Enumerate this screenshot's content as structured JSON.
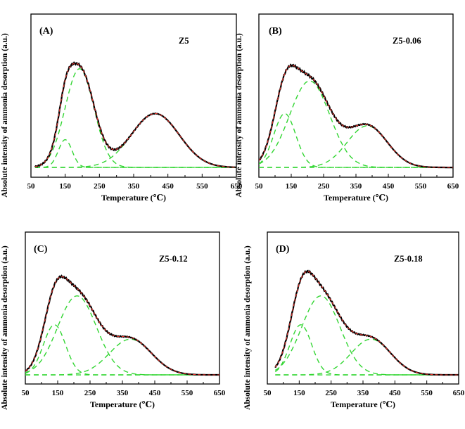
{
  "colors": {
    "experimental": "#000000",
    "fitted_sum": "#e8312a",
    "gaussian_component": "#33d633"
  },
  "chart_data": [
    {
      "type": "line",
      "panel": "(A)",
      "sample": "Z5",
      "xlabel": "Temperature (℃)",
      "ylabel": "Absolute intensity of ammonia desorption (a.u.)",
      "xlim": [
        50,
        650
      ],
      "ylim": [
        0,
        1
      ],
      "xticks": [
        50,
        150,
        250,
        350,
        450,
        550,
        650
      ],
      "x_start": 62,
      "baseline": 0.06,
      "peaks": [
        {
          "center": 150,
          "amplitude": 0.17,
          "sigma": 20
        },
        {
          "center": 192,
          "amplitude": 0.605,
          "sigma": 42
        },
        {
          "center": 413,
          "amplitude": 0.33,
          "sigma": 70
        }
      ]
    },
    {
      "type": "line",
      "panel": "(B)",
      "sample": "Z5-0.06",
      "xlabel": "Temperature (℃)",
      "ylabel": "Absolute intensity of ammonia desorption (a.u.)",
      "xlim": [
        50,
        650
      ],
      "ylim": [
        0,
        1
      ],
      "xticks": [
        50,
        150,
        250,
        350,
        450,
        550,
        650
      ],
      "x_start": 50,
      "baseline": 0.06,
      "peaks": [
        {
          "center": 130,
          "amplitude": 0.33,
          "sigma": 34
        },
        {
          "center": 207,
          "amplitude": 0.53,
          "sigma": 62
        },
        {
          "center": 385,
          "amplitude": 0.255,
          "sigma": 62
        }
      ]
    },
    {
      "type": "line",
      "panel": "(C)",
      "sample": "Z5-0.12",
      "xlabel": "Temperature (℃)",
      "ylabel": "Absolute intensity of ammonia desorption (a.u.)",
      "xlim": [
        50,
        650
      ],
      "ylim": [
        0,
        1
      ],
      "xticks": [
        50,
        150,
        250,
        350,
        450,
        550,
        650
      ],
      "x_start": 50,
      "baseline": 0.06,
      "peaks": [
        {
          "center": 140,
          "amplitude": 0.33,
          "sigma": 34
        },
        {
          "center": 210,
          "amplitude": 0.52,
          "sigma": 60
        },
        {
          "center": 375,
          "amplitude": 0.235,
          "sigma": 65
        }
      ]
    },
    {
      "type": "line",
      "panel": "(D)",
      "sample": "Z5-0.18",
      "xlabel": "Temperature (℃)",
      "ylabel": "Absolute intensity of ammonia desorption (a.u.)",
      "xlim": [
        50,
        650
      ],
      "ylim": [
        0,
        1
      ],
      "xticks": [
        50,
        150,
        250,
        350,
        450,
        550,
        650
      ],
      "x_start": 75,
      "baseline": 0.06,
      "peaks": [
        {
          "center": 155,
          "amplitude": 0.33,
          "sigma": 34
        },
        {
          "center": 218,
          "amplitude": 0.52,
          "sigma": 60
        },
        {
          "center": 375,
          "amplitude": 0.235,
          "sigma": 62
        }
      ]
    }
  ]
}
